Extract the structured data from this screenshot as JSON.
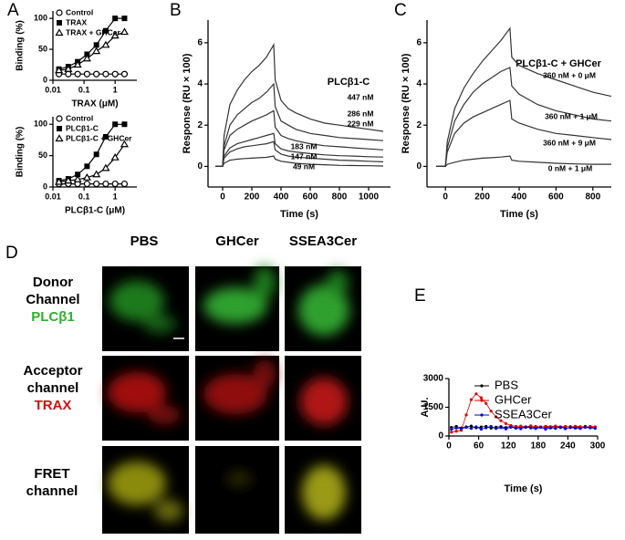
{
  "panels": [
    "A",
    "B",
    "C",
    "D",
    "E"
  ],
  "chart_data": [
    {
      "type": "line",
      "xscale": "log",
      "xlabel": "TRAX (μM)",
      "ylabel": "Binding (%)",
      "xlim": [
        0.01,
        5
      ],
      "xticks": [
        0.01,
        0.1,
        1
      ],
      "ylim": [
        0,
        112
      ],
      "yticks": [
        0,
        50,
        100
      ],
      "legend": "upper left",
      "x": [
        0.0156,
        0.03125,
        0.0625,
        0.125,
        0.25,
        0.5,
        1,
        2
      ],
      "series": [
        {
          "name": "Control",
          "color": "#000000",
          "marker": "circle-open",
          "values": [
            10,
            10,
            10,
            10,
            10,
            10,
            10,
            10
          ]
        },
        {
          "name": "TRAX",
          "color": "#000000",
          "marker": "square",
          "values": [
            18,
            22,
            30,
            42,
            57,
            80,
            100,
            100
          ]
        },
        {
          "name": "TRAX + GHCer",
          "color": "#000000",
          "marker": "triangle-open",
          "values": [
            16,
            18,
            25,
            35,
            47,
            57,
            72,
            78
          ]
        }
      ]
    },
    {
      "type": "line",
      "xscale": "log",
      "xlabel": "PLCβ1-C (μM)",
      "ylabel": "Binding (%)",
      "xlim": [
        0.01,
        5
      ],
      "xticks": [
        0.01,
        0.1,
        1
      ],
      "ylim": [
        0,
        112
      ],
      "yticks": [
        0,
        50,
        100
      ],
      "legend": "upper left",
      "x": [
        0.0156,
        0.03125,
        0.0625,
        0.125,
        0.25,
        0.5,
        1,
        2
      ],
      "series": [
        {
          "name": "Control",
          "color": "#000000",
          "marker": "circle-open",
          "values": [
            5,
            5,
            5,
            5,
            5,
            5,
            5,
            5
          ]
        },
        {
          "name": "PLCβ1-C",
          "color": "#000000",
          "marker": "square",
          "values": [
            10,
            13,
            20,
            33,
            52,
            80,
            100,
            100
          ]
        },
        {
          "name": "PLCβ1-C + GHCer",
          "color": "#000000",
          "marker": "triangle-open",
          "values": [
            8,
            10,
            12,
            15,
            20,
            30,
            47,
            68
          ]
        }
      ]
    },
    {
      "type": "line",
      "xlabel": "Time (s)",
      "ylabel": "Response (RU × 100)",
      "annotation": "PLCβ1-C",
      "xlim": [
        -100,
        1150
      ],
      "xticks": [
        0,
        200,
        400,
        600,
        800,
        1000
      ],
      "ylim": [
        -1,
        7.1
      ],
      "yticks": [
        0,
        2,
        4,
        6
      ],
      "legend": "inline",
      "x": [
        -50,
        0,
        10,
        50,
        100,
        150,
        200,
        250,
        300,
        350,
        360,
        400,
        450,
        500,
        600,
        700,
        800,
        900,
        1000,
        1100
      ],
      "series": [
        {
          "name": "447 nM",
          "color": "#333333",
          "values": [
            0,
            0,
            1.5,
            3.0,
            3.7,
            4.2,
            4.6,
            4.9,
            5.3,
            5.9,
            4.2,
            3.2,
            2.8,
            2.6,
            2.3,
            2.1,
            2.0,
            1.9,
            1.8,
            1.7
          ]
        },
        {
          "name": "286 nM",
          "color": "#333333",
          "values": [
            0,
            0,
            1.0,
            2.0,
            2.5,
            2.8,
            3.1,
            3.3,
            3.6,
            4.0,
            2.9,
            2.2,
            2.0,
            1.8,
            1.6,
            1.5,
            1.4,
            1.35,
            1.3,
            1.25
          ]
        },
        {
          "name": "229 nM",
          "color": "#333333",
          "values": [
            0,
            0,
            0.8,
            1.5,
            1.8,
            2.0,
            2.2,
            2.35,
            2.5,
            2.7,
            1.9,
            1.5,
            1.35,
            1.25,
            1.1,
            1.0,
            0.95,
            0.9,
            0.85,
            0.8
          ]
        },
        {
          "name": "183 nM",
          "color": "#333333",
          "values": [
            0,
            0,
            0.5,
            0.9,
            1.1,
            1.2,
            1.3,
            1.4,
            1.5,
            1.6,
            1.1,
            0.85,
            0.75,
            0.7,
            0.62,
            0.56,
            0.52,
            0.5,
            0.47,
            0.45
          ]
        },
        {
          "name": "147 nM",
          "color": "#333333",
          "values": [
            0,
            0,
            0.4,
            0.7,
            0.85,
            0.95,
            1.0,
            1.05,
            1.1,
            1.2,
            0.8,
            0.6,
            0.5,
            0.45,
            0.4,
            0.35,
            0.3,
            0.28,
            0.25,
            0.22
          ]
        },
        {
          "name": "49 nM",
          "color": "#333333",
          "values": [
            0,
            0,
            0.15,
            0.3,
            0.35,
            0.38,
            0.4,
            0.42,
            0.44,
            0.5,
            0.35,
            0.25,
            0.2,
            0.15,
            0.1,
            0.08,
            0.05,
            0.04,
            0.03,
            0.02
          ]
        }
      ]
    },
    {
      "type": "line",
      "xlabel": "Time (s)",
      "ylabel": "Response (RU × 100)",
      "annotation": "PLCβ1-C + GHCer",
      "xlim": [
        -100,
        900
      ],
      "xticks": [
        0,
        200,
        400,
        600,
        800
      ],
      "ylim": [
        -1,
        7.1
      ],
      "yticks": [
        0,
        2,
        4,
        6
      ],
      "legend": "inline",
      "x": [
        -50,
        0,
        10,
        50,
        100,
        150,
        200,
        250,
        300,
        350,
        360,
        400,
        500,
        600,
        700,
        800,
        900
      ],
      "series": [
        {
          "name": "360 nM + 0 μM",
          "color": "#333333",
          "values": [
            0,
            0,
            1.2,
            2.8,
            3.8,
            4.5,
            5.1,
            5.6,
            6.1,
            6.7,
            5.3,
            4.9,
            4.5,
            4.2,
            3.9,
            3.6,
            3.4
          ]
        },
        {
          "name": "360 nM + 1 μM",
          "color": "#333333",
          "values": [
            0,
            0,
            0.9,
            2.2,
            3.0,
            3.6,
            4.0,
            4.3,
            4.6,
            4.8,
            3.9,
            3.5,
            3.0,
            2.7,
            2.5,
            2.3,
            2.2
          ]
        },
        {
          "name": "360 nM + 9 μM",
          "color": "#333333",
          "values": [
            0,
            0,
            0.7,
            1.6,
            2.1,
            2.4,
            2.6,
            2.8,
            3.0,
            3.2,
            2.3,
            2.1,
            1.8,
            1.6,
            1.5,
            1.4,
            1.3
          ]
        },
        {
          "name": "0 nM + 1 μM",
          "color": "#333333",
          "values": [
            0,
            0,
            0.1,
            0.2,
            0.3,
            0.35,
            0.4,
            0.42,
            0.45,
            0.5,
            0.3,
            0.25,
            0.2,
            0.15,
            0.12,
            0.1,
            0.1
          ]
        }
      ]
    },
    {
      "type": "line",
      "xlabel": "Time (s)",
      "ylabel": "A.U.",
      "xlim": [
        0,
        300
      ],
      "xticks": [
        0,
        60,
        120,
        180,
        240,
        300
      ],
      "ylim": [
        0,
        3000
      ],
      "yticks": [
        0,
        1500,
        3000
      ],
      "legend": "upper right",
      "x": [
        5,
        15,
        25,
        35,
        45,
        55,
        65,
        75,
        85,
        95,
        105,
        115,
        125,
        135,
        145,
        155,
        165,
        175,
        185,
        195,
        205,
        215,
        225,
        235,
        245,
        255,
        265,
        275,
        285,
        295
      ],
      "series": [
        {
          "name": "PBS",
          "color": "#000000",
          "marker": "dot",
          "values": [
            450,
            500,
            420,
            480,
            520,
            430,
            470,
            500,
            410,
            460,
            490,
            440,
            510,
            420,
            470,
            450,
            500,
            430,
            480,
            460,
            420,
            510,
            440,
            470,
            490,
            430,
            460,
            500,
            450,
            470
          ]
        },
        {
          "name": "GHCer",
          "color": "#e00000",
          "marker": "dot",
          "values": [
            200,
            250,
            300,
            1100,
            1900,
            2200,
            2000,
            1700,
            1300,
            1000,
            800,
            650,
            550,
            500,
            520,
            480,
            530,
            500,
            470,
            510,
            490,
            520,
            480,
            500,
            470,
            510,
            490,
            460,
            500,
            480
          ]
        },
        {
          "name": "SSEA3Cer",
          "color": "#0000cc",
          "marker": "dot",
          "values": [
            350,
            420,
            380,
            450,
            400,
            480,
            360,
            430,
            500,
            390,
            440,
            370,
            460,
            410,
            380,
            470,
            420,
            390,
            450,
            360,
            430,
            400,
            470,
            380,
            440,
            410,
            390,
            460,
            420,
            400
          ]
        }
      ]
    }
  ],
  "microscopy": {
    "columns": [
      "PBS",
      "GHCer",
      "SSEA3Cer"
    ],
    "rows": [
      {
        "label": "Donor Channel",
        "sublabel": "PLCβ1"
      },
      {
        "label": "Acceptor channel",
        "sublabel": "TRAX"
      },
      {
        "label": "FRET channel"
      }
    ]
  }
}
